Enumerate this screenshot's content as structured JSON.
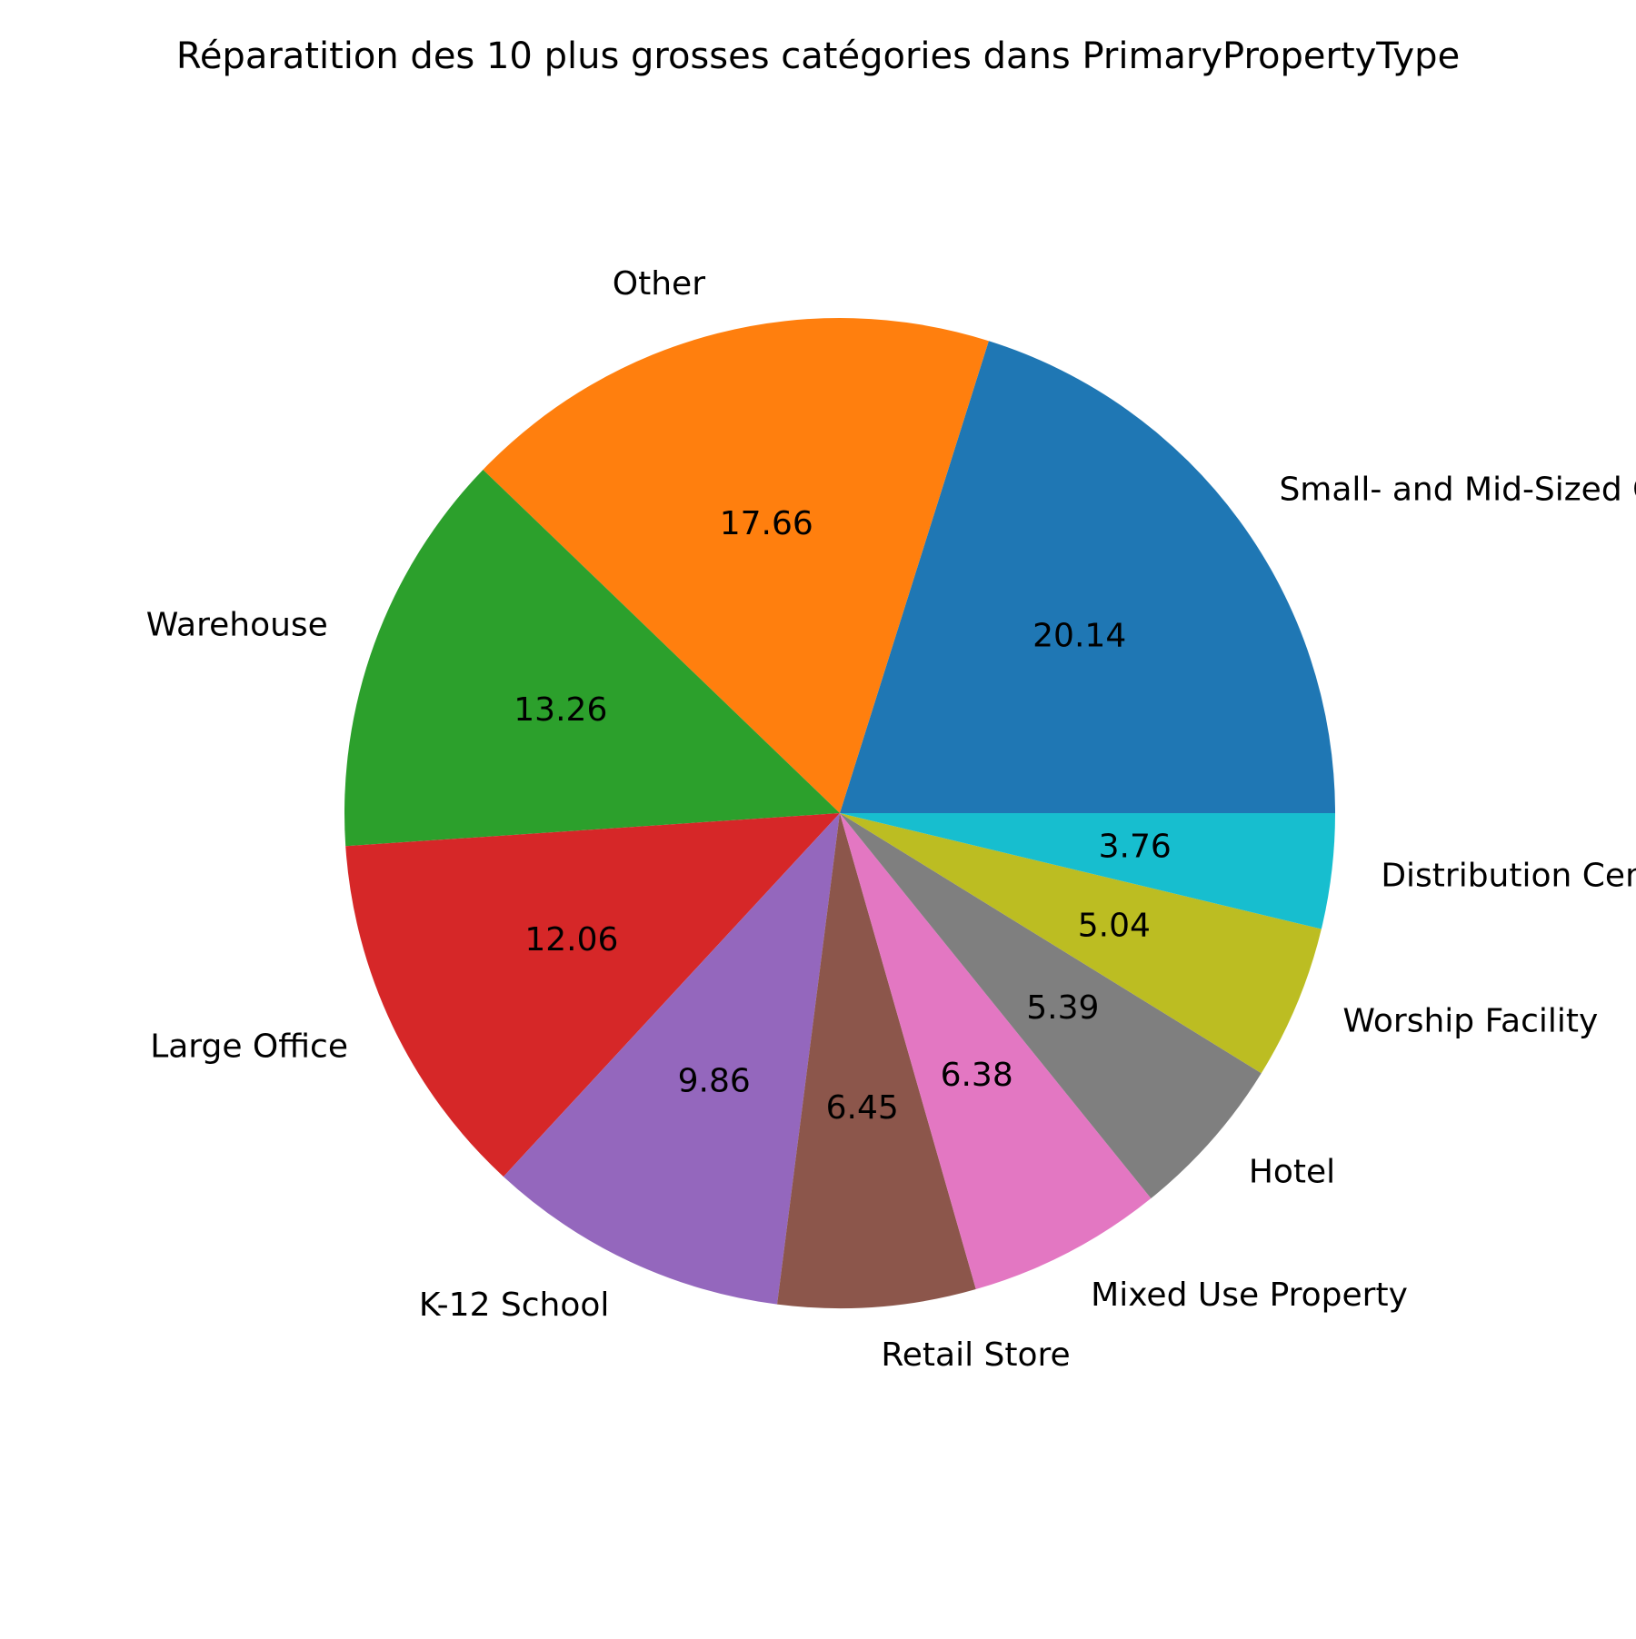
{
  "chart_data": {
    "type": "pie",
    "title": "Réparatition des 10 plus grosses catégories dans PrimaryPropertyType",
    "categories": [
      "Small- and Mid-Sized Office",
      "Other",
      "Warehouse",
      "Large Office",
      "K-12 School",
      "Retail Store",
      "Mixed Use Property",
      "Hotel",
      "Worship Facility",
      "Distribution Center"
    ],
    "values": [
      20.14,
      17.66,
      13.26,
      12.06,
      9.86,
      6.45,
      6.38,
      5.39,
      5.04,
      3.76
    ],
    "value_labels": [
      "20.14",
      "17.66",
      "13.26",
      "12.06",
      "9.86",
      "6.45",
      "6.38",
      "5.39",
      "5.04",
      "3.76"
    ],
    "colors": [
      "#1f77b4",
      "#ff7f0e",
      "#2ca02c",
      "#d62728",
      "#9467bd",
      "#8c564b",
      "#e377c2",
      "#7f7f7f",
      "#bcbd22",
      "#17becf"
    ],
    "start_angle_deg": 0,
    "direction": "counterclockwise",
    "legend": "none"
  }
}
